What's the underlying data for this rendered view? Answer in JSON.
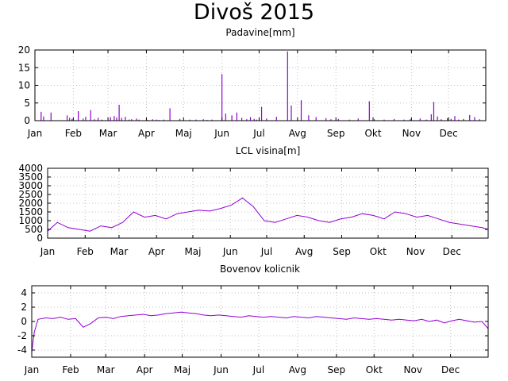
{
  "title": "Divoš 2015",
  "colors": {
    "series": "#9400d3",
    "grid": "#bfbfbf",
    "axis": "#000000"
  },
  "chart_data": [
    {
      "type": "bar",
      "title": "Padavine[mm]",
      "xlabel": "",
      "ylabel": "",
      "grid": true,
      "x_ticks": [
        "Jan",
        "Feb",
        "Mar",
        "Apr",
        "Maj",
        "Jun",
        "Jul",
        "Avg",
        "Sep",
        "Okt",
        "Nov",
        "Dec"
      ],
      "x_tick_days": [
        1,
        32,
        60,
        91,
        121,
        152,
        182,
        213,
        244,
        274,
        305,
        335
      ],
      "xlim": [
        1,
        365
      ],
      "ylim": [
        0,
        20
      ],
      "y_ticks": [
        0,
        5,
        10,
        15,
        20
      ],
      "x": [
        6,
        8,
        14,
        27,
        29,
        31,
        36,
        40,
        42,
        46,
        49,
        52,
        55,
        62,
        65,
        67,
        69,
        71,
        74,
        77,
        79,
        83,
        85,
        92,
        96,
        99,
        101,
        105,
        110,
        118,
        126,
        131,
        137,
        140,
        144,
        152,
        155,
        160,
        164,
        168,
        172,
        175,
        178,
        180,
        184,
        188,
        196,
        205,
        208,
        216,
        222,
        228,
        236,
        240,
        246,
        255,
        262,
        271,
        275,
        283,
        291,
        299,
        304,
        312,
        317,
        321,
        323,
        326,
        329,
        334,
        337,
        340,
        343,
        347,
        352,
        356,
        360
      ],
      "values": [
        2.5,
        1.2,
        2.3,
        1.5,
        0.8,
        0.5,
        2.7,
        0.6,
        1.1,
        3.0,
        0.4,
        0.8,
        0.3,
        1.0,
        1.3,
        0.9,
        4.5,
        0.8,
        1.1,
        0.3,
        0.4,
        0.6,
        0.3,
        0.2,
        0.4,
        0.3,
        0.2,
        0.3,
        3.5,
        0.5,
        0.3,
        0.3,
        0.4,
        0.2,
        0.3,
        13.2,
        2.0,
        1.5,
        2.3,
        0.8,
        0.4,
        1.0,
        0.5,
        0.3,
        3.9,
        0.6,
        1.1,
        19.6,
        4.3,
        5.8,
        1.5,
        1.0,
        0.7,
        0.4,
        0.5,
        0.3,
        0.6,
        5.5,
        0.4,
        0.3,
        0.5,
        0.3,
        0.4,
        0.6,
        0.3,
        1.8,
        5.3,
        1.2,
        0.4,
        0.7,
        0.5,
        1.3,
        0.3,
        0.5,
        1.6,
        1.0,
        0.4
      ]
    },
    {
      "type": "line",
      "title": "LCL visina[m]",
      "xlabel": "",
      "ylabel": "",
      "grid": true,
      "x_ticks": [
        "Jan",
        "Feb",
        "Mar",
        "Apr",
        "Maj",
        "Jun",
        "Jul",
        "Avg",
        "Sep",
        "Okt",
        "Nov",
        "Dec"
      ],
      "x_tick_days": [
        1,
        32,
        60,
        91,
        121,
        152,
        182,
        213,
        244,
        274,
        305,
        335
      ],
      "xlim": [
        1,
        365
      ],
      "ylim": [
        0,
        4000
      ],
      "y_ticks": [
        0,
        500,
        1000,
        1500,
        2000,
        2500,
        3000,
        3500,
        4000
      ],
      "x": [
        1,
        9,
        18,
        27,
        36,
        45,
        54,
        63,
        72,
        81,
        90,
        99,
        108,
        117,
        126,
        135,
        144,
        153,
        162,
        171,
        180,
        189,
        198,
        207,
        216,
        225,
        234,
        243,
        252,
        261,
        270,
        279,
        288,
        297,
        306,
        315,
        324,
        333,
        342,
        351,
        360,
        365
      ],
      "values": [
        400,
        900,
        600,
        500,
        400,
        700,
        600,
        900,
        1500,
        1200,
        1300,
        1100,
        1400,
        1500,
        1600,
        1550,
        1700,
        1900,
        2300,
        1800,
        1000,
        900,
        1100,
        1300,
        1200,
        1000,
        900,
        1100,
        1200,
        1400,
        1300,
        1100,
        1500,
        1400,
        1200,
        1300,
        1100,
        900,
        800,
        700,
        600,
        500
      ]
    },
    {
      "type": "line",
      "title": "Bovenov kolicnik",
      "xlabel": "",
      "ylabel": "",
      "grid": true,
      "x_ticks": [
        "Jan",
        "Feb",
        "Mar",
        "Apr",
        "Maj",
        "Jun",
        "Jul",
        "Avg",
        "Sep",
        "Okt",
        "Nov",
        "Dec"
      ],
      "x_tick_days": [
        1,
        32,
        60,
        91,
        121,
        152,
        182,
        213,
        244,
        274,
        305,
        335
      ],
      "xlim": [
        1,
        365
      ],
      "ylim": [
        -5,
        5
      ],
      "y_ticks": [
        -4,
        -2,
        0,
        2,
        4
      ],
      "x": [
        1,
        3,
        6,
        12,
        18,
        24,
        30,
        36,
        42,
        48,
        54,
        60,
        66,
        72,
        78,
        84,
        90,
        96,
        102,
        108,
        114,
        120,
        126,
        132,
        138,
        144,
        150,
        156,
        162,
        168,
        174,
        180,
        186,
        192,
        198,
        204,
        210,
        216,
        222,
        228,
        234,
        240,
        246,
        252,
        258,
        264,
        270,
        276,
        282,
        288,
        294,
        300,
        306,
        312,
        318,
        324,
        330,
        336,
        342,
        348,
        354,
        360,
        365
      ],
      "values": [
        -4.3,
        -1.5,
        0.3,
        0.5,
        0.4,
        0.6,
        0.3,
        0.4,
        -0.8,
        -0.3,
        0.5,
        0.6,
        0.4,
        0.7,
        0.8,
        0.9,
        1.0,
        0.8,
        0.9,
        1.1,
        1.2,
        1.3,
        1.2,
        1.1,
        0.9,
        0.8,
        0.9,
        0.8,
        0.7,
        0.6,
        0.8,
        0.7,
        0.6,
        0.7,
        0.6,
        0.5,
        0.7,
        0.6,
        0.5,
        0.7,
        0.6,
        0.5,
        0.4,
        0.3,
        0.5,
        0.4,
        0.3,
        0.4,
        0.3,
        0.2,
        0.3,
        0.2,
        0.1,
        0.3,
        0.0,
        0.2,
        -0.2,
        0.1,
        0.3,
        0.1,
        -0.1,
        0.0,
        -1.0
      ]
    }
  ]
}
